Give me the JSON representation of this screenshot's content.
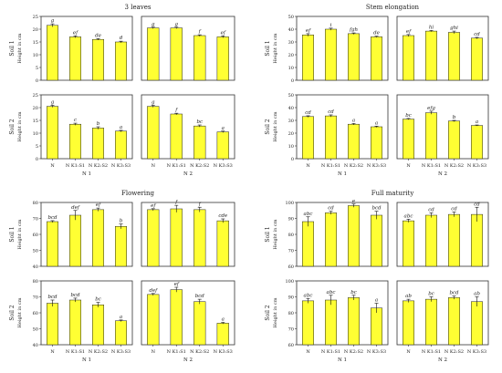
{
  "chart_data": [
    {
      "type": "bar",
      "title": "3 leaves",
      "xlabel": "",
      "ylabel": "Height in cm",
      "ylim": [
        0,
        25
      ],
      "yticks": [
        0,
        5,
        10,
        15,
        20,
        25
      ],
      "x_group_labels": [
        "N 1",
        "N 2"
      ],
      "row_labels": [
        "Soil 1",
        "Soil 2"
      ],
      "categories": [
        "N",
        "N K1:S1",
        "N K2:S2",
        "N K3:S3"
      ],
      "panels": [
        {
          "group": "N 1",
          "soil": "Soil 1",
          "values": [
            21.5,
            17.0,
            16.0,
            15.0
          ],
          "errors": [
            0.6,
            0.4,
            0.3,
            0.3
          ],
          "letters": [
            "g",
            "ef",
            "de",
            "d"
          ]
        },
        {
          "group": "N 2",
          "soil": "Soil 1",
          "values": [
            20.5,
            20.5,
            17.5,
            17.0
          ],
          "errors": [
            0.3,
            0.3,
            0.3,
            0.4
          ],
          "letters": [
            "g",
            "g",
            "f",
            "ef"
          ]
        },
        {
          "group": "N 1",
          "soil": "Soil 2",
          "values": [
            20.5,
            13.5,
            12.0,
            10.8
          ],
          "errors": [
            0.4,
            0.4,
            0.5,
            0.3
          ],
          "letters": [
            "g",
            "c",
            "b",
            "a"
          ]
        },
        {
          "group": "N 2",
          "soil": "Soil 2",
          "values": [
            20.5,
            17.5,
            12.8,
            10.5
          ],
          "errors": [
            0.4,
            0.3,
            0.4,
            0.3
          ],
          "letters": [
            "g",
            "f",
            "bc",
            "a"
          ]
        }
      ]
    },
    {
      "type": "bar",
      "title": "Stem elongation",
      "xlabel": "",
      "ylabel": "Height in cm",
      "ylim": [
        0,
        50
      ],
      "yticks": [
        0,
        10,
        20,
        30,
        40,
        50
      ],
      "x_group_labels": [
        "N 1",
        "N 2"
      ],
      "row_labels": [
        "Soil 1",
        "Soil 2"
      ],
      "categories": [
        "N",
        "N K1:S1",
        "N K2:S2",
        "N K3:S3"
      ],
      "panels": [
        {
          "group": "N 1",
          "soil": "Soil 1",
          "values": [
            35.5,
            40.0,
            36.5,
            34.0
          ],
          "errors": [
            1.0,
            0.8,
            0.6,
            0.5
          ],
          "letters": [
            "ef",
            "i",
            "fgh",
            "de"
          ]
        },
        {
          "group": "N 2",
          "soil": "Soil 1",
          "values": [
            35.0,
            38.5,
            37.5,
            33.0
          ],
          "errors": [
            0.8,
            0.5,
            1.0,
            0.6
          ],
          "letters": [
            "ef",
            "hi",
            "ghi",
            "cd"
          ]
        },
        {
          "group": "N 1",
          "soil": "Soil 2",
          "values": [
            33.0,
            33.5,
            27.0,
            25.0
          ],
          "errors": [
            0.6,
            0.8,
            0.6,
            0.5
          ],
          "letters": [
            "cd",
            "cd",
            "a",
            "a"
          ]
        },
        {
          "group": "N 2",
          "soil": "Soil 2",
          "values": [
            31.0,
            36.0,
            29.5,
            26.0
          ],
          "errors": [
            0.5,
            1.2,
            0.5,
            0.4
          ],
          "letters": [
            "bc",
            "efg",
            "b",
            "a"
          ]
        }
      ]
    },
    {
      "type": "bar",
      "title": "Flowering",
      "xlabel": "",
      "ylabel": "Height in cm",
      "ylim": [
        40,
        80
      ],
      "yticks": [
        40,
        50,
        60,
        70,
        80
      ],
      "x_group_labels": [
        "N 1",
        "N 2"
      ],
      "row_labels": [
        "Soil 1",
        "Soil 2"
      ],
      "categories": [
        "N",
        "N K1:S1",
        "N K2:S2",
        "N K3:S3"
      ],
      "panels": [
        {
          "group": "N 1",
          "soil": "Soil 1",
          "values": [
            68.0,
            72.0,
            75.5,
            65.0
          ],
          "errors": [
            0.6,
            3.0,
            1.0,
            1.5
          ],
          "letters": [
            "bcd",
            "def",
            "ef",
            "b"
          ]
        },
        {
          "group": "N 2",
          "soil": "Soil 1",
          "values": [
            75.5,
            76.0,
            75.5,
            68.5
          ],
          "errors": [
            0.6,
            2.2,
            1.5,
            1.2
          ],
          "letters": [
            "ef",
            "f",
            "f",
            "cde"
          ]
        },
        {
          "group": "N 1",
          "soil": "Soil 2",
          "values": [
            66.0,
            68.0,
            65.0,
            55.0
          ],
          "errors": [
            2.0,
            1.2,
            1.5,
            0.5
          ],
          "letters": [
            "bcd",
            "bcd",
            "bc",
            "a"
          ]
        },
        {
          "group": "N 2",
          "soil": "Soil 2",
          "values": [
            71.5,
            74.5,
            67.0,
            53.5
          ],
          "errors": [
            0.6,
            1.5,
            1.5,
            0.5
          ],
          "letters": [
            "def",
            "ef",
            "bcd",
            "a"
          ]
        }
      ]
    },
    {
      "type": "bar",
      "title": "Full maturity",
      "xlabel": "",
      "ylabel": "Height in cm",
      "ylim": [
        60,
        100
      ],
      "yticks": [
        60,
        70,
        80,
        90,
        100
      ],
      "x_group_labels": [
        "N 1",
        "N 2"
      ],
      "row_labels": [
        "Soil 1",
        "Soil 2"
      ],
      "categories": [
        "N",
        "N K1:S1",
        "N K2:S2",
        "N K3:S3"
      ],
      "panels": [
        {
          "group": "N 1",
          "soil": "Soil 1",
          "values": [
            88.0,
            93.5,
            98.0,
            92.0
          ],
          "errors": [
            3.0,
            1.0,
            1.0,
            2.5
          ],
          "letters": [
            "abc",
            "cd",
            "e",
            "bcd"
          ]
        },
        {
          "group": "N 2",
          "soil": "Soil 1",
          "values": [
            88.5,
            92.0,
            92.5,
            92.5
          ],
          "errors": [
            1.0,
            1.5,
            1.5,
            4.5
          ],
          "letters": [
            "abc",
            "cd",
            "cd",
            "cd"
          ]
        },
        {
          "group": "N 1",
          "soil": "Soil 2",
          "values": [
            87.5,
            88.0,
            89.5,
            83.0
          ],
          "errors": [
            1.5,
            3.0,
            1.5,
            3.0
          ],
          "letters": [
            "abc",
            "abc",
            "bc",
            "a"
          ]
        },
        {
          "group": "N 2",
          "soil": "Soil 2",
          "values": [
            87.5,
            88.5,
            89.5,
            87.0
          ],
          "errors": [
            1.0,
            1.5,
            1.0,
            3.0
          ],
          "letters": [
            "ab",
            "bc",
            "bcd",
            "ab"
          ]
        }
      ]
    }
  ],
  "style": {
    "bar_color": "#ffff33",
    "bar_stroke": "#222222",
    "axis_color": "#333333",
    "text_color": "#222222"
  }
}
